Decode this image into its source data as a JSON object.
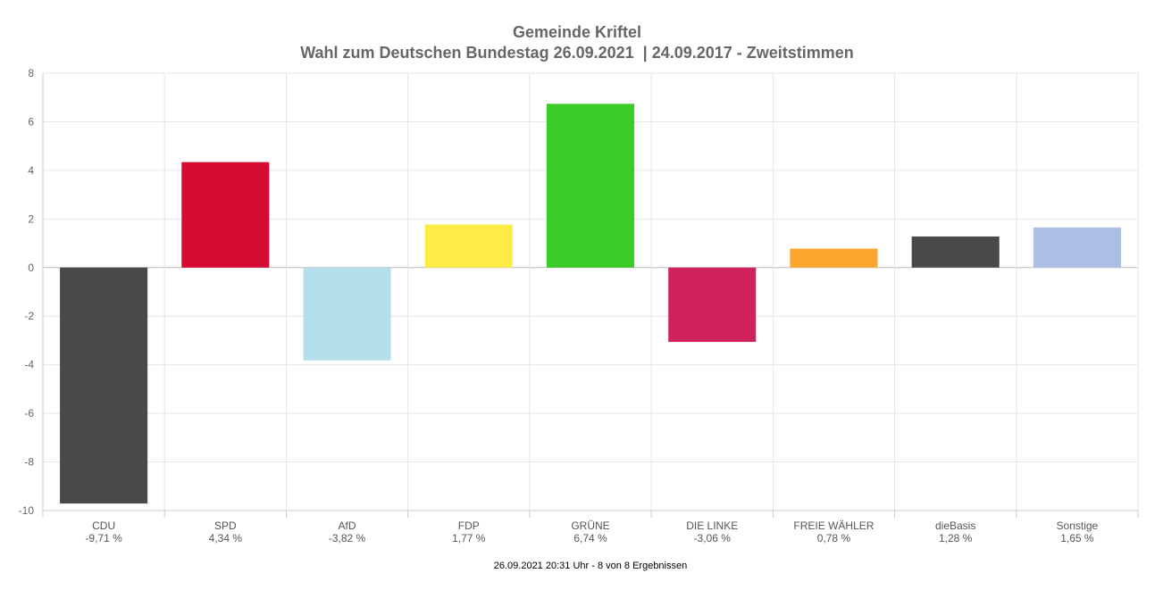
{
  "chart_data": {
    "type": "bar",
    "title": "Gemeinde Kriftel",
    "subtitle": "Wahl zum Deutschen Bundestag 26.09.2021  | 24.09.2017 - Zweitstimmen",
    "categories": [
      "CDU",
      "SPD",
      "AfD",
      "FDP",
      "GRÜNE",
      "DIE LINKE",
      "FREIE WÄHLER",
      "dieBasis",
      "Sonstige"
    ],
    "value_labels": [
      "-9,71 %",
      "4,34 %",
      "-3,82 %",
      "1,77 %",
      "6,74 %",
      "-3,06 %",
      "0,78 %",
      "1,28 %",
      "1,65 %"
    ],
    "values": [
      -9.71,
      4.34,
      -3.82,
      1.77,
      6.74,
      -3.06,
      0.78,
      1.28,
      1.65
    ],
    "colors": [
      "#4a4a4a",
      "#d50b33",
      "#b4dfeb",
      "#fdeb46",
      "#3bcc27",
      "#d1235b",
      "#fba72f",
      "#4a4848",
      "#abbee3"
    ],
    "ylim": [
      -10,
      8
    ],
    "yticks": [
      "8",
      "6",
      "4",
      "2",
      "0",
      "-2",
      "-4",
      "-6",
      "-8",
      "-10"
    ],
    "ytick_values": [
      8,
      6,
      4,
      2,
      0,
      -2,
      -4,
      -6,
      -8,
      -10
    ],
    "grid": true,
    "legend": "none",
    "xlabel": "",
    "ylabel": ""
  },
  "footer": "26.09.2021 20:31 Uhr - 8 von 8 Ergebnissen"
}
